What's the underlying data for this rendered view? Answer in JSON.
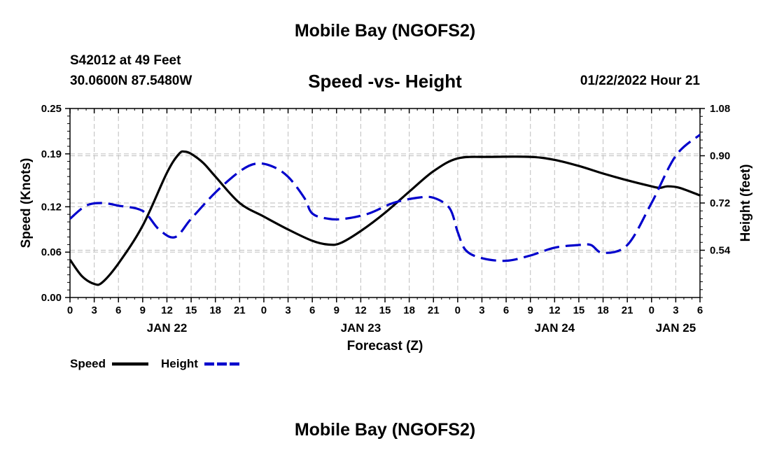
{
  "header": {
    "title": "Mobile Bay (NGOFS2)",
    "station": "S42012 at 49 Feet",
    "coords": "30.0600N  87.5480W",
    "subtitle": "Speed -vs- Height",
    "datetime": "01/22/2022 Hour 21"
  },
  "footer": {
    "title": "Mobile Bay (NGOFS2)"
  },
  "chart_data": {
    "type": "line",
    "title": "Speed -vs- Height",
    "xlabel": "Forecast (Z)",
    "ylabel": "Speed (Knots)",
    "y2label": "Height (feet)",
    "xlim": [
      0,
      78
    ],
    "ylim": [
      0.0,
      0.25
    ],
    "y2lim": [
      0.36,
      1.08
    ],
    "grid": true,
    "legend_position": "bottom-left",
    "x_tick_positions": [
      0,
      3,
      6,
      9,
      12,
      15,
      18,
      21,
      24,
      27,
      30,
      33,
      36,
      39,
      42,
      45,
      48,
      51,
      54,
      57,
      60,
      63,
      66,
      69,
      72,
      75,
      78
    ],
    "x_tick_labels": [
      "0",
      "3",
      "6",
      "9",
      "12",
      "15",
      "18",
      "21",
      "0",
      "3",
      "6",
      "9",
      "12",
      "15",
      "18",
      "21",
      "0",
      "3",
      "6",
      "9",
      "12",
      "15",
      "18",
      "21",
      "0",
      "3",
      "6"
    ],
    "date_labels": [
      {
        "x": 12,
        "label": "JAN 22"
      },
      {
        "x": 36,
        "label": "JAN 23"
      },
      {
        "x": 60,
        "label": "JAN 24"
      },
      {
        "x": 75,
        "label": "JAN 25"
      }
    ],
    "y_ticks": [
      0.0,
      0.06,
      0.12,
      0.19,
      0.25
    ],
    "y_tick_labels": [
      "0.00",
      "0.06",
      "0.12",
      "0.19",
      "0.25"
    ],
    "y2_ticks": [
      0.54,
      0.72,
      0.9,
      1.08
    ],
    "y2_tick_labels": [
      "0.54",
      "0.72",
      "0.90",
      "1.08"
    ],
    "series": [
      {
        "name": "Speed",
        "axis": "left",
        "color": "#000000",
        "dash": "solid",
        "x": [
          0,
          1.5,
          3,
          4,
          6,
          9,
          12,
          13.5,
          14.2,
          15,
          16.5,
          18,
          21,
          24,
          27,
          30,
          32,
          33.5,
          36,
          39,
          42,
          45,
          48,
          52,
          57,
          60,
          63,
          66,
          69,
          72,
          73,
          74,
          75.5,
          78
        ],
        "y": [
          0.05,
          0.028,
          0.018,
          0.02,
          0.045,
          0.095,
          0.165,
          0.19,
          0.193,
          0.19,
          0.178,
          0.16,
          0.125,
          0.107,
          0.09,
          0.075,
          0.07,
          0.072,
          0.088,
          0.112,
          0.14,
          0.167,
          0.184,
          0.186,
          0.186,
          0.182,
          0.174,
          0.164,
          0.155,
          0.147,
          0.145,
          0.147,
          0.145,
          0.135
        ]
      },
      {
        "name": "Height",
        "axis": "right",
        "color": "#0000cc",
        "dash": "dashed",
        "x": [
          0,
          2,
          4,
          6,
          9,
          11,
          13,
          15,
          18,
          21,
          23,
          25,
          27,
          29,
          30,
          32,
          34,
          37,
          40,
          43,
          45,
          47,
          48,
          49,
          51,
          54,
          57,
          60,
          63,
          64.5,
          66,
          69,
          72,
          75,
          78
        ],
        "y": [
          0.66,
          0.71,
          0.72,
          0.71,
          0.69,
          0.62,
          0.59,
          0.66,
          0.76,
          0.84,
          0.87,
          0.86,
          0.82,
          0.74,
          0.68,
          0.66,
          0.66,
          0.68,
          0.72,
          0.74,
          0.74,
          0.7,
          0.61,
          0.54,
          0.51,
          0.5,
          0.52,
          0.55,
          0.56,
          0.56,
          0.53,
          0.56,
          0.72,
          0.9,
          0.98
        ]
      }
    ]
  },
  "legend": {
    "items": [
      {
        "label": "Speed",
        "color": "#000000",
        "dash": "solid"
      },
      {
        "label": "Height",
        "color": "#0000cc",
        "dash": "dashed"
      }
    ]
  }
}
